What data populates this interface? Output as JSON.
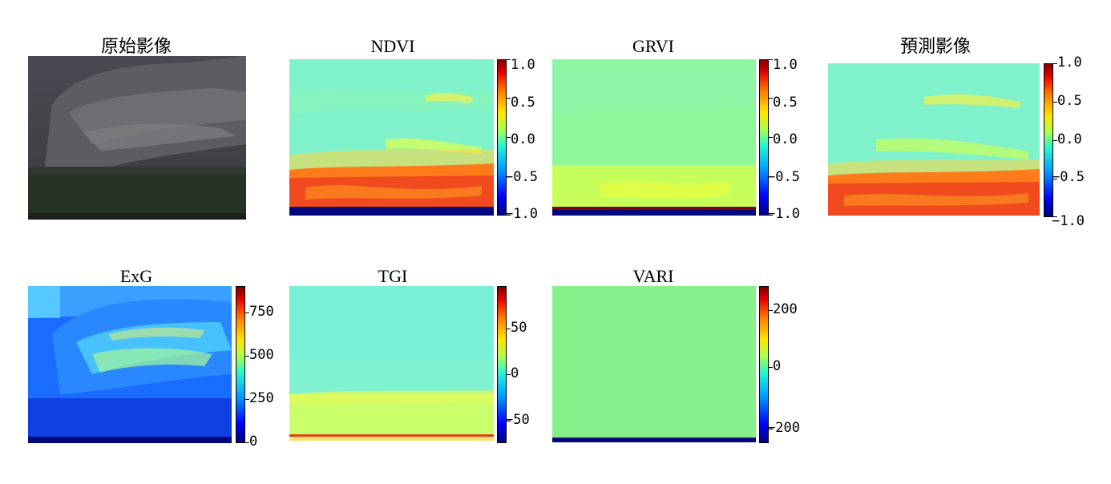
{
  "panels": {
    "original": {
      "title": "原始影像"
    },
    "ndvi": {
      "title": "NDVI",
      "ticks": [
        "1.0",
        "0.5",
        "0.0",
        "−0.5",
        "−1.0"
      ]
    },
    "grvi": {
      "title": "GRVI",
      "ticks": [
        "1.0",
        "0.5",
        "0.0",
        "−0.5",
        "−1.0"
      ]
    },
    "predicted": {
      "title": "預測影像",
      "ticks": [
        "1.0",
        "0.5",
        "0.0",
        "−0.5",
        "−1.0"
      ]
    },
    "exg": {
      "title": "ExG",
      "ticks": [
        "750",
        "500",
        "250",
        "0"
      ]
    },
    "tgi": {
      "title": "TGI",
      "ticks": [
        "50",
        "0",
        "−50"
      ]
    },
    "vari": {
      "title": "VARI",
      "ticks": [
        "200",
        "0",
        "−200"
      ]
    }
  },
  "colors": {
    "colormap": "jet",
    "background": "#ffffff"
  }
}
